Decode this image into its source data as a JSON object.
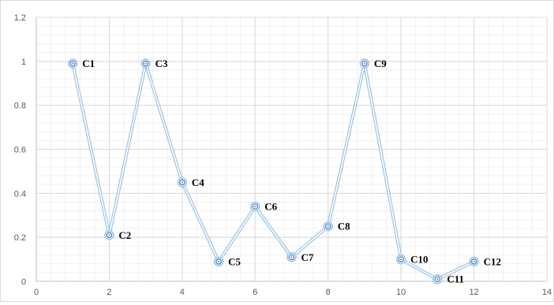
{
  "chart_data": {
    "type": "scatter",
    "title": "",
    "xlabel": "",
    "ylabel": "",
    "xlim": [
      0,
      14
    ],
    "ylim": [
      0,
      1.2
    ],
    "x_ticks": [
      0,
      2,
      4,
      6,
      8,
      10,
      12,
      14
    ],
    "y_ticks": [
      0,
      0.2,
      0.4,
      0.6,
      0.8,
      1,
      1.2
    ],
    "x_tick_labels": [
      "0",
      "2",
      "4",
      "6",
      "8",
      "10",
      "12",
      "14"
    ],
    "y_tick_labels": [
      "0",
      "0.2",
      "0.4",
      "0.6",
      "0.8",
      "1",
      "1.2"
    ],
    "grid": true,
    "minor_grid": true,
    "legend": "none",
    "series": [
      {
        "color": "#9dc3e6",
        "marker_color": "#4a7ebb",
        "line": "straight",
        "points": [
          {
            "x": 1,
            "y": 0.99,
            "label": "C1"
          },
          {
            "x": 2,
            "y": 0.21,
            "label": "C2"
          },
          {
            "x": 3,
            "y": 0.99,
            "label": "C3"
          },
          {
            "x": 4,
            "y": 0.45,
            "label": "C4"
          },
          {
            "x": 5,
            "y": 0.09,
            "label": "C5"
          },
          {
            "x": 6,
            "y": 0.34,
            "label": "C6"
          },
          {
            "x": 7,
            "y": 0.11,
            "label": "C7"
          },
          {
            "x": 8,
            "y": 0.25,
            "label": "C8"
          },
          {
            "x": 9,
            "y": 0.99,
            "label": "C9"
          },
          {
            "x": 10,
            "y": 0.1,
            "label": "C10"
          },
          {
            "x": 11,
            "y": 0.01,
            "label": "C11"
          },
          {
            "x": 12,
            "y": 0.09,
            "label": "C12"
          }
        ]
      }
    ]
  },
  "colors": {
    "major_grid": "#d9d9d9",
    "minor_grid": "#f0f0f0",
    "axis": "#bfbfbf",
    "tick_text": "#595959",
    "label_text": "#000000"
  }
}
